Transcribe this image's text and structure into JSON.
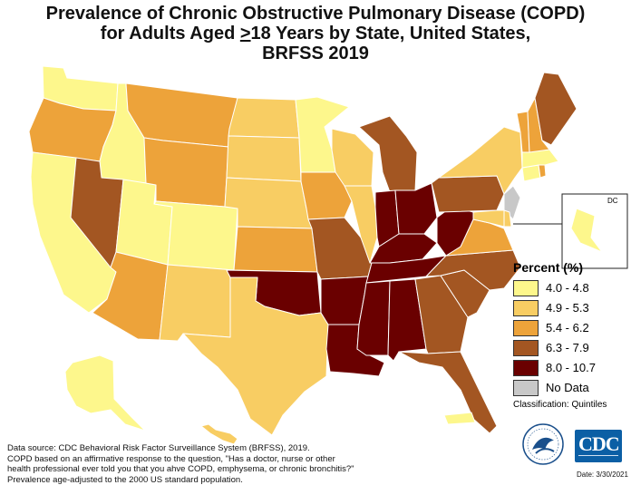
{
  "title": {
    "line1": "Prevalence of Chronic Obstructive Pulmonary Disease (COPD)",
    "line2_pre": "for Adults Aged ",
    "line2_ge": ">",
    "line2_post": "18 Years by State, United States,",
    "line3": "BRFSS 2019"
  },
  "legend": {
    "title": "Percent (%)",
    "classes": [
      {
        "label": "4.0 - 4.8",
        "color": "#fdf78c"
      },
      {
        "label": "4.9 - 5.3",
        "color": "#f8cd63"
      },
      {
        "label": "5.4 - 6.2",
        "color": "#eda33a"
      },
      {
        "label": "6.3 - 7.9",
        "color": "#a35622"
      },
      {
        "label": "8.0 - 10.7",
        "color": "#6a0000"
      },
      {
        "label": "No Data",
        "color": "#c8c8c8"
      }
    ],
    "classification": "Classification: Quintiles"
  },
  "inset_label": "DC",
  "source": {
    "line1": "Data source: CDC Behavioral Risk Factor Surveillance System (BRFSS), 2019.",
    "line2": "COPD based on an affirmative response to the question, \"Has a doctor, nurse or other",
    "line3": "health professional ever told you that you ahve COPD, emphysema, or chronic bronchitis?\"",
    "line4": "Prevalence age-adjusted to the 2000 US standard population."
  },
  "date": "Date: 3/30/2021",
  "logos": {
    "cdc": "CDC",
    "hhs": "hhs-eagle-icon"
  },
  "states": [
    {
      "id": "WA",
      "class": 0
    },
    {
      "id": "OR",
      "class": 2
    },
    {
      "id": "CA",
      "class": 0
    },
    {
      "id": "ID",
      "class": 0
    },
    {
      "id": "NV",
      "class": 3
    },
    {
      "id": "UT",
      "class": 0
    },
    {
      "id": "AZ",
      "class": 2
    },
    {
      "id": "MT",
      "class": 2
    },
    {
      "id": "WY",
      "class": 2
    },
    {
      "id": "CO",
      "class": 0
    },
    {
      "id": "NM",
      "class": 1
    },
    {
      "id": "ND",
      "class": 1
    },
    {
      "id": "SD",
      "class": 1
    },
    {
      "id": "NE",
      "class": 1
    },
    {
      "id": "KS",
      "class": 2
    },
    {
      "id": "OK",
      "class": 4
    },
    {
      "id": "TX",
      "class": 1
    },
    {
      "id": "MN",
      "class": 0
    },
    {
      "id": "IA",
      "class": 2
    },
    {
      "id": "MO",
      "class": 3
    },
    {
      "id": "AR",
      "class": 4
    },
    {
      "id": "LA",
      "class": 4
    },
    {
      "id": "WI",
      "class": 1
    },
    {
      "id": "IL",
      "class": 1
    },
    {
      "id": "MI",
      "class": 3
    },
    {
      "id": "IN",
      "class": 4
    },
    {
      "id": "OH",
      "class": 4
    },
    {
      "id": "KY",
      "class": 4
    },
    {
      "id": "TN",
      "class": 4
    },
    {
      "id": "MS",
      "class": 4
    },
    {
      "id": "AL",
      "class": 4
    },
    {
      "id": "GA",
      "class": 3
    },
    {
      "id": "FL",
      "class": 3
    },
    {
      "id": "SC",
      "class": 3
    },
    {
      "id": "NC",
      "class": 3
    },
    {
      "id": "VA",
      "class": 2
    },
    {
      "id": "WV",
      "class": 4
    },
    {
      "id": "PA",
      "class": 3
    },
    {
      "id": "NY",
      "class": 1
    },
    {
      "id": "NJ",
      "class": 5
    },
    {
      "id": "DE",
      "class": 1
    },
    {
      "id": "MD",
      "class": 1
    },
    {
      "id": "CT",
      "class": 0
    },
    {
      "id": "RI",
      "class": 2
    },
    {
      "id": "MA",
      "class": 0
    },
    {
      "id": "VT",
      "class": 2
    },
    {
      "id": "NH",
      "class": 2
    },
    {
      "id": "ME",
      "class": 3
    },
    {
      "id": "AK",
      "class": 0
    },
    {
      "id": "HI",
      "class": 1
    },
    {
      "id": "PR",
      "class": 0
    },
    {
      "id": "DC",
      "class": 0
    }
  ]
}
